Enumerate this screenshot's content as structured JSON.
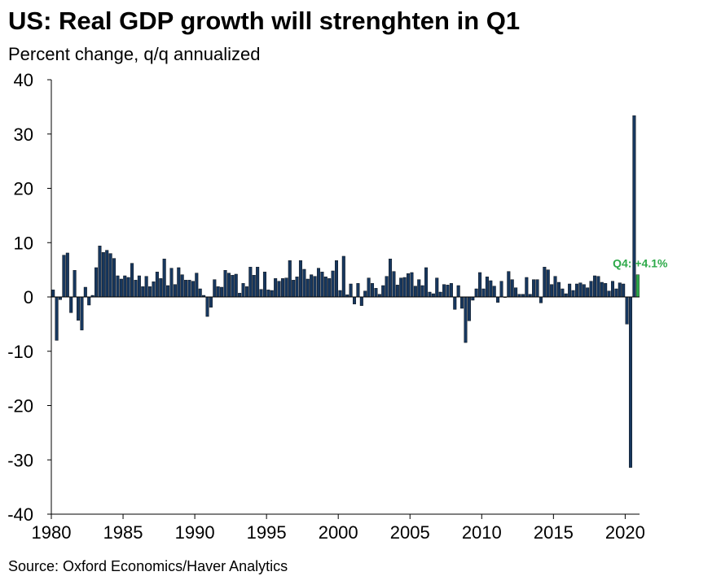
{
  "title": "US: Real GDP growth will strenghten in Q1",
  "subtitle": "Percent change, q/q annualized",
  "source": "Source: Oxford Economics/Haver Analytics",
  "colors": {
    "bar": "#17375e",
    "highlight": "#2eaa4a",
    "axis": "#000000"
  },
  "chart_data": {
    "type": "bar",
    "title": "US: Real GDP growth will strenghten in Q1",
    "subtitle": "Percent change, q/q annualized",
    "xlabel": "",
    "ylabel": "",
    "ylim": [
      -40,
      40
    ],
    "yticks": [
      40,
      30,
      20,
      10,
      0,
      -10,
      -20,
      -30,
      -40
    ],
    "xlim": [
      1980,
      2021
    ],
    "xticks": [
      1980,
      1985,
      1990,
      1995,
      2000,
      2005,
      2010,
      2015,
      2020
    ],
    "grid": false,
    "x_start": "1980 Q1",
    "frequency": "quarterly",
    "values": [
      1.3,
      -8.0,
      -0.5,
      7.7,
      8.1,
      -2.9,
      4.9,
      -4.3,
      -6.1,
      1.8,
      -1.5,
      0.3,
      5.4,
      9.4,
      8.2,
      8.6,
      8.0,
      7.1,
      3.9,
      3.3,
      3.9,
      3.6,
      6.2,
      3.1,
      3.9,
      1.9,
      3.8,
      1.9,
      2.8,
      4.6,
      3.4,
      7.0,
      2.1,
      5.3,
      2.3,
      5.4,
      4.1,
      3.1,
      3.1,
      2.9,
      4.4,
      1.5,
      0.3,
      -3.6,
      -1.9,
      3.2,
      1.9,
      1.8,
      4.9,
      4.4,
      4.0,
      4.2,
      0.7,
      2.5,
      1.9,
      5.5,
      4.0,
      5.5,
      1.4,
      4.6,
      1.3,
      1.2,
      3.4,
      2.9,
      3.4,
      3.5,
      6.7,
      3.1,
      3.7,
      6.7,
      5.1,
      3.3,
      4.1,
      3.8,
      5.3,
      4.6,
      3.7,
      3.4,
      4.8,
      6.7,
      1.2,
      7.5,
      0.4,
      2.4,
      -1.3,
      2.5,
      -1.6,
      1.1,
      3.5,
      2.5,
      1.6,
      0.5,
      2.1,
      3.8,
      7.0,
      4.7,
      2.2,
      3.5,
      3.6,
      4.3,
      4.5,
      2.0,
      3.2,
      2.1,
      5.4,
      0.9,
      0.6,
      3.5,
      0.9,
      2.3,
      2.2,
      2.5,
      -2.3,
      2.1,
      -2.1,
      -8.4,
      -4.4,
      -0.6,
      1.5,
      4.5,
      1.5,
      3.7,
      3.0,
      2.0,
      -1.0,
      2.9,
      -0.1,
      4.7,
      3.2,
      1.7,
      0.5,
      0.5,
      3.6,
      0.5,
      3.2,
      3.2,
      -1.1,
      5.5,
      5.0,
      2.3,
      3.8,
      2.7,
      1.5,
      0.6,
      2.4,
      1.2,
      2.4,
      2.6,
      2.3,
      1.7,
      2.9,
      3.9,
      3.8,
      2.7,
      2.5,
      1.1,
      2.9,
      1.5,
      2.6,
      2.4,
      -5.0,
      -31.4,
      33.4,
      4.1
    ],
    "highlight": {
      "index": 163,
      "label": "Q4: +4.1%"
    }
  }
}
